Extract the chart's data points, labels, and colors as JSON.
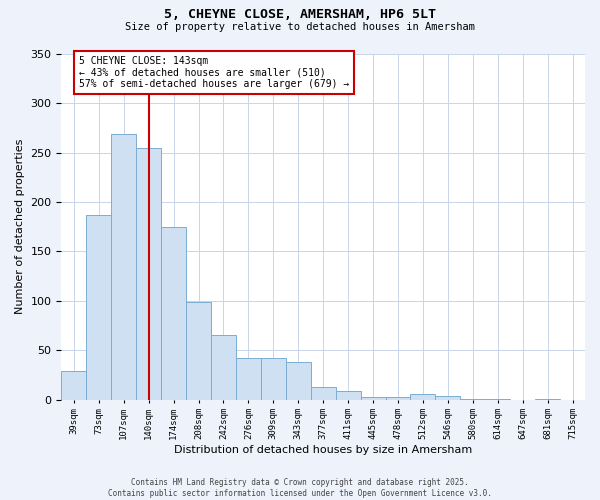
{
  "title": "5, CHEYNE CLOSE, AMERSHAM, HP6 5LT",
  "subtitle": "Size of property relative to detached houses in Amersham",
  "xlabel": "Distribution of detached houses by size in Amersham",
  "ylabel": "Number of detached properties",
  "categories": [
    "39sqm",
    "73sqm",
    "107sqm",
    "140sqm",
    "174sqm",
    "208sqm",
    "242sqm",
    "276sqm",
    "309sqm",
    "343sqm",
    "377sqm",
    "411sqm",
    "445sqm",
    "478sqm",
    "512sqm",
    "546sqm",
    "580sqm",
    "614sqm",
    "647sqm",
    "681sqm",
    "715sqm"
  ],
  "values": [
    29,
    187,
    269,
    255,
    175,
    99,
    65,
    42,
    42,
    38,
    13,
    9,
    3,
    3,
    6,
    4,
    1,
    1,
    0,
    1,
    0
  ],
  "bar_color": "#cfe0f3",
  "bar_edge_color": "#7aadd4",
  "vline_x_index": 3,
  "vline_color": "#cc0000",
  "annotation_text": "5 CHEYNE CLOSE: 143sqm\n← 43% of detached houses are smaller (510)\n57% of semi-detached houses are larger (679) →",
  "annotation_box_color": "#ffffff",
  "annotation_box_edge_color": "#cc0000",
  "ylim": [
    0,
    350
  ],
  "yticks": [
    0,
    50,
    100,
    150,
    200,
    250,
    300,
    350
  ],
  "footer_line1": "Contains HM Land Registry data © Crown copyright and database right 2025.",
  "footer_line2": "Contains public sector information licensed under the Open Government Licence v3.0.",
  "bg_color": "#eef2fb",
  "plot_bg_color": "#ffffff",
  "grid_color": "#c8d4e8"
}
